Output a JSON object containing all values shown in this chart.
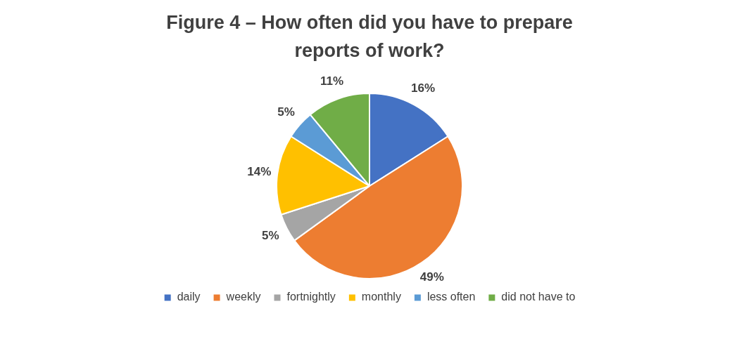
{
  "chart_data": {
    "type": "pie",
    "title": "Figure 4 – How often did you have to prepare reports of work?",
    "categories": [
      "daily",
      "weekly",
      "fortnightly",
      "monthly",
      "less often",
      "did not have to"
    ],
    "values": [
      16,
      49,
      5,
      14,
      5,
      11
    ],
    "value_labels": [
      "16%",
      "49%",
      "5%",
      "14%",
      "5%",
      "11%"
    ],
    "colors": [
      "#4472c4",
      "#ed7d31",
      "#a5a5a5",
      "#ffc000",
      "#5b9bd5",
      "#70ad47"
    ],
    "legend": "bottom"
  }
}
